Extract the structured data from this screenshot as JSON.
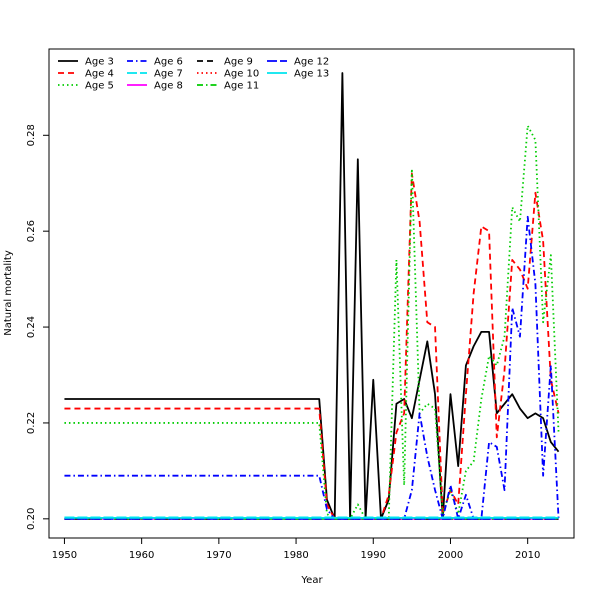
{
  "chart_data": {
    "type": "line",
    "title": "",
    "xlabel": "Year",
    "ylabel": "Natural mortality",
    "xlim": [
      1948,
      2016
    ],
    "ylim": [
      0.196,
      0.298
    ],
    "x_ticks": [
      1950,
      1960,
      1970,
      1980,
      1990,
      2000,
      2010
    ],
    "y_ticks": [
      0.2,
      0.22,
      0.24,
      0.26,
      0.28
    ],
    "y_tick_labels": [
      "0.20",
      "0.22",
      "0.24",
      "0.26",
      "0.28"
    ],
    "legend_position": "top-left",
    "series": [
      {
        "name": "Age 3",
        "color": "#000000",
        "dash": "solid",
        "points": [
          [
            1950,
            0.225
          ],
          [
            1983,
            0.225
          ],
          [
            1984,
            0.204
          ],
          [
            1985,
            0.2
          ],
          [
            1986,
            0.293
          ],
          [
            1987,
            0.2
          ],
          [
            1988,
            0.275
          ],
          [
            1989,
            0.2
          ],
          [
            1990,
            0.229
          ],
          [
            1991,
            0.2
          ],
          [
            1992,
            0.204
          ],
          [
            1993,
            0.224
          ],
          [
            1994,
            0.225
          ],
          [
            1995,
            0.221
          ],
          [
            1996,
            0.229
          ],
          [
            1997,
            0.237
          ],
          [
            1998,
            0.226
          ],
          [
            1999,
            0.2
          ],
          [
            2000,
            0.226
          ],
          [
            2001,
            0.211
          ],
          [
            2002,
            0.232
          ],
          [
            2003,
            0.236
          ],
          [
            2004,
            0.239
          ],
          [
            2005,
            0.239
          ],
          [
            2006,
            0.222
          ],
          [
            2007,
            0.224
          ],
          [
            2008,
            0.226
          ],
          [
            2009,
            0.223
          ],
          [
            2010,
            0.221
          ],
          [
            2011,
            0.222
          ],
          [
            2012,
            0.221
          ],
          [
            2013,
            0.216
          ],
          [
            2014,
            0.214
          ]
        ]
      },
      {
        "name": "Age 4",
        "color": "#ff0000",
        "dash": "6,4",
        "points": [
          [
            1950,
            0.223
          ],
          [
            1983,
            0.223
          ],
          [
            1984,
            0.203
          ],
          [
            1985,
            0.2
          ],
          [
            1991,
            0.2
          ],
          [
            1992,
            0.205
          ],
          [
            1993,
            0.218
          ],
          [
            1994,
            0.222
          ],
          [
            1995,
            0.272
          ],
          [
            1996,
            0.262
          ],
          [
            1997,
            0.241
          ],
          [
            1998,
            0.24
          ],
          [
            1999,
            0.201
          ],
          [
            2000,
            0.206
          ],
          [
            2001,
            0.203
          ],
          [
            2002,
            0.226
          ],
          [
            2003,
            0.247
          ],
          [
            2004,
            0.261
          ],
          [
            2005,
            0.26
          ],
          [
            2006,
            0.217
          ],
          [
            2007,
            0.231
          ],
          [
            2008,
            0.254
          ],
          [
            2009,
            0.252
          ],
          [
            2010,
            0.248
          ],
          [
            2011,
            0.268
          ],
          [
            2012,
            0.258
          ],
          [
            2013,
            0.229
          ],
          [
            2014,
            0.222
          ]
        ]
      },
      {
        "name": "Age 5",
        "color": "#00cc00",
        "dash": "1.5,3",
        "points": [
          [
            1950,
            0.22
          ],
          [
            1983,
            0.22
          ],
          [
            1984,
            0.201
          ],
          [
            1985,
            0.2
          ],
          [
            1987,
            0.2
          ],
          [
            1988,
            0.203
          ],
          [
            1989,
            0.2
          ],
          [
            1992,
            0.2
          ],
          [
            1993,
            0.254
          ],
          [
            1994,
            0.207
          ],
          [
            1995,
            0.273
          ],
          [
            1996,
            0.222
          ],
          [
            1997,
            0.224
          ],
          [
            1998,
            0.223
          ],
          [
            1999,
            0.201
          ],
          [
            2000,
            0.206
          ],
          [
            2001,
            0.201
          ],
          [
            2002,
            0.21
          ],
          [
            2003,
            0.212
          ],
          [
            2004,
            0.225
          ],
          [
            2005,
            0.234
          ],
          [
            2006,
            0.232
          ],
          [
            2007,
            0.238
          ],
          [
            2008,
            0.265
          ],
          [
            2009,
            0.262
          ],
          [
            2010,
            0.282
          ],
          [
            2011,
            0.279
          ],
          [
            2012,
            0.241
          ],
          [
            2013,
            0.255
          ],
          [
            2014,
            0.218
          ]
        ]
      },
      {
        "name": "Age 6",
        "color": "#0000ff",
        "dash": "6,3,1.5,3",
        "points": [
          [
            1950,
            0.209
          ],
          [
            1983,
            0.209
          ],
          [
            1984,
            0.202
          ],
          [
            1985,
            0.2
          ],
          [
            1994,
            0.2
          ],
          [
            1995,
            0.206
          ],
          [
            1996,
            0.222
          ],
          [
            1997,
            0.213
          ],
          [
            1998,
            0.206
          ],
          [
            1999,
            0.2
          ],
          [
            2000,
            0.207
          ],
          [
            2001,
            0.2
          ],
          [
            2002,
            0.205
          ],
          [
            2003,
            0.2
          ],
          [
            2004,
            0.2
          ],
          [
            2005,
            0.216
          ],
          [
            2006,
            0.215
          ],
          [
            2007,
            0.206
          ],
          [
            2008,
            0.244
          ],
          [
            2009,
            0.238
          ],
          [
            2010,
            0.263
          ],
          [
            2011,
            0.249
          ],
          [
            2012,
            0.209
          ],
          [
            2013,
            0.232
          ],
          [
            2014,
            0.2
          ]
        ]
      },
      {
        "name": "Age 7",
        "color": "#00e5ee",
        "dash": "10,3",
        "points": [
          [
            1950,
            0.2003
          ],
          [
            2014,
            0.2003
          ]
        ]
      },
      {
        "name": "Age 8",
        "color": "#ff00ff",
        "dash": "solid",
        "points": [
          [
            1950,
            0.2
          ],
          [
            2014,
            0.2
          ]
        ]
      },
      {
        "name": "Age 9",
        "color": "#000000",
        "dash": "6,4",
        "points": [
          [
            1950,
            0.2
          ],
          [
            2014,
            0.2
          ]
        ]
      },
      {
        "name": "Age 10",
        "color": "#ff0000",
        "dash": "1.5,3",
        "points": [
          [
            1950,
            0.2
          ],
          [
            2014,
            0.2
          ]
        ]
      },
      {
        "name": "Age 11",
        "color": "#00cc00",
        "dash": "6,3,1.5,3",
        "points": [
          [
            1950,
            0.2
          ],
          [
            2014,
            0.2
          ]
        ]
      },
      {
        "name": "Age 12",
        "color": "#0000ff",
        "dash": "10,3",
        "points": [
          [
            1950,
            0.2
          ],
          [
            2014,
            0.2
          ]
        ]
      },
      {
        "name": "Age 13",
        "color": "#00e5ee",
        "dash": "solid",
        "points": [
          [
            1950,
            0.2002
          ],
          [
            2014,
            0.2002
          ]
        ]
      }
    ]
  }
}
